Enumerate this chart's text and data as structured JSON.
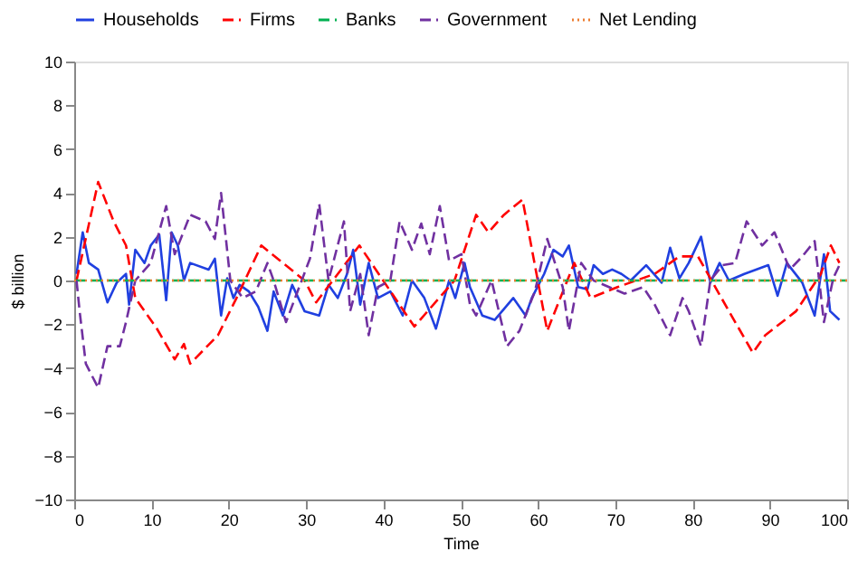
{
  "chart_data": {
    "type": "line",
    "xlabel": "Time",
    "ylabel": "$ billion",
    "xlim": [
      0,
      100
    ],
    "xticks": [
      0,
      10,
      20,
      30,
      40,
      50,
      60,
      70,
      80,
      90,
      100
    ],
    "ylim": [
      -10,
      10
    ],
    "yticks": [
      -10,
      -8,
      -6,
      -4,
      -2,
      0,
      2,
      4,
      6,
      8,
      10
    ],
    "grid": false,
    "legend": "top",
    "marker": "none",
    "series": [
      {
        "name": "Households",
        "color": "#2040e0",
        "line_style": "solid",
        "x": [
          0.3,
          1.1,
          1.9,
          3.1,
          4.3,
          5.5,
          6.7,
          7.1,
          7.9,
          9.1,
          9.9,
          11,
          11.9,
          12.6,
          13.4,
          14.2,
          15,
          17.4,
          18.2,
          19,
          19.8,
          20.6,
          21.4,
          22.6,
          23.8,
          25,
          25.8,
          27,
          28.2,
          29.8,
          31.7,
          32.9,
          34.1,
          35.3,
          36.1,
          37,
          38.1,
          39.3,
          40.9,
          42.5,
          43.7,
          45.3,
          46.8,
          48.5,
          49.3,
          50.5,
          51.2,
          52.8,
          54.4,
          56.8,
          58.4,
          59.2,
          60.8,
          62,
          63.2,
          64,
          65.2,
          66.4,
          67.2,
          68.4,
          69.6,
          70.8,
          72,
          74,
          76,
          77.1,
          78.3,
          79.5,
          81.1,
          82.3,
          83.5,
          84.7,
          86.7,
          89.8,
          91,
          92.2,
          94.2,
          95.8,
          97,
          97.8,
          99
        ],
        "values": [
          0.3,
          2.2,
          0.8,
          0.5,
          -1,
          -0.1,
          0.3,
          -1.1,
          1.4,
          0.8,
          1.6,
          2.1,
          -0.9,
          2.2,
          1.6,
          0,
          0.8,
          0.5,
          1,
          -1.6,
          0.1,
          -0.8,
          -0.2,
          -0.5,
          -1.2,
          -2.3,
          -0.5,
          -1.6,
          -0.2,
          -1.4,
          -1.6,
          -0.2,
          -0.8,
          0.3,
          1.4,
          -1.1,
          0.8,
          -0.8,
          -0.5,
          -1.6,
          0,
          -0.8,
          -2.2,
          0,
          -0.8,
          0.8,
          -0.3,
          -1.6,
          -1.8,
          -0.8,
          -1.6,
          -0.8,
          0.3,
          1.4,
          1.1,
          1.6,
          -0.3,
          -0.4,
          0.7,
          0.3,
          0.5,
          0.3,
          0,
          0.7,
          -0.1,
          1.5,
          0.1,
          0.8,
          2,
          -0.1,
          0.8,
          0,
          0.3,
          0.7,
          -0.7,
          0.8,
          -0.1,
          -1.6,
          1.2,
          -1.4,
          -1.8
        ]
      },
      {
        "name": "Firms",
        "color": "#ff0000",
        "line_style": "dashed",
        "x": [
          0.3,
          3.1,
          5.1,
          6.7,
          7.9,
          10.7,
          13,
          14.2,
          15,
          18.6,
          21,
          24.2,
          29.8,
          31.3,
          36.9,
          44,
          49.2,
          52,
          53.6,
          55.6,
          58,
          61.2,
          64.7,
          66.8,
          70.3,
          75.1,
          78.3,
          80.7,
          84.7,
          87.8,
          89.4,
          93.4,
          96.6,
          97.9,
          99
        ],
        "values": [
          0,
          4.5,
          2.7,
          1.6,
          -0.8,
          -2.2,
          -3.6,
          -2.9,
          -3.8,
          -2.5,
          -0.8,
          1.6,
          0,
          -1,
          1.6,
          -2.1,
          0,
          3,
          2.2,
          3,
          3.7,
          -2.3,
          0.8,
          -0.8,
          -0.3,
          0.3,
          1.1,
          1.1,
          -1.4,
          -3.3,
          -2.5,
          -1.4,
          0.3,
          1.6,
          0.8
        ]
      },
      {
        "name": "Banks",
        "color": "#00b050",
        "line_style": "dashed",
        "x": [
          0,
          100
        ],
        "values": [
          0,
          0
        ]
      },
      {
        "name": "Government",
        "color": "#7030a0",
        "line_style": "dashed",
        "x": [
          0.3,
          0.7,
          1.5,
          3.1,
          4.3,
          5.9,
          6.7,
          7.9,
          9.9,
          11.9,
          13,
          15,
          17,
          18.2,
          19,
          20.2,
          21.8,
          23.5,
          25,
          25.8,
          27.4,
          30.5,
          31.7,
          32.9,
          34.9,
          35.7,
          37,
          38.1,
          39.3,
          40.9,
          42.1,
          43.7,
          44.9,
          46,
          47.3,
          48.5,
          50.1,
          51.2,
          52,
          54,
          56,
          57.6,
          59.6,
          61.2,
          63.2,
          64,
          65.6,
          67.2,
          71.2,
          73.6,
          75.1,
          77.1,
          78.7,
          79.5,
          81.1,
          82.3,
          83.9,
          85.5,
          87,
          89,
          90.6,
          92.6,
          94.2,
          95.8,
          97,
          98.2,
          99
        ],
        "values": [
          0,
          -1.4,
          -3.8,
          -4.9,
          -3,
          -3,
          -1.9,
          0,
          0.8,
          3.4,
          1.2,
          3,
          2.7,
          1.9,
          4,
          0,
          -0.8,
          -0.5,
          0.8,
          0,
          -1.9,
          1,
          3.5,
          0,
          2.7,
          -1.4,
          0.3,
          -2.5,
          -0.3,
          0,
          2.7,
          1.4,
          2.6,
          1.2,
          3.4,
          0.9,
          1.2,
          -1.1,
          -1.6,
          0,
          -3,
          -2.3,
          -0.5,
          1.9,
          -0.3,
          -2.3,
          0.8,
          0,
          -0.6,
          -0.3,
          -1.1,
          -2.5,
          -0.8,
          -1.4,
          -3,
          0,
          0.7,
          0.8,
          2.7,
          1.6,
          2.2,
          0.5,
          1.1,
          1.8,
          -1.9,
          0.1,
          0.7
        ]
      },
      {
        "name": "Net Lending",
        "color": "#ed7d31",
        "line_style": "dotted",
        "x": [
          0,
          100
        ],
        "values": [
          0,
          0
        ]
      }
    ]
  }
}
